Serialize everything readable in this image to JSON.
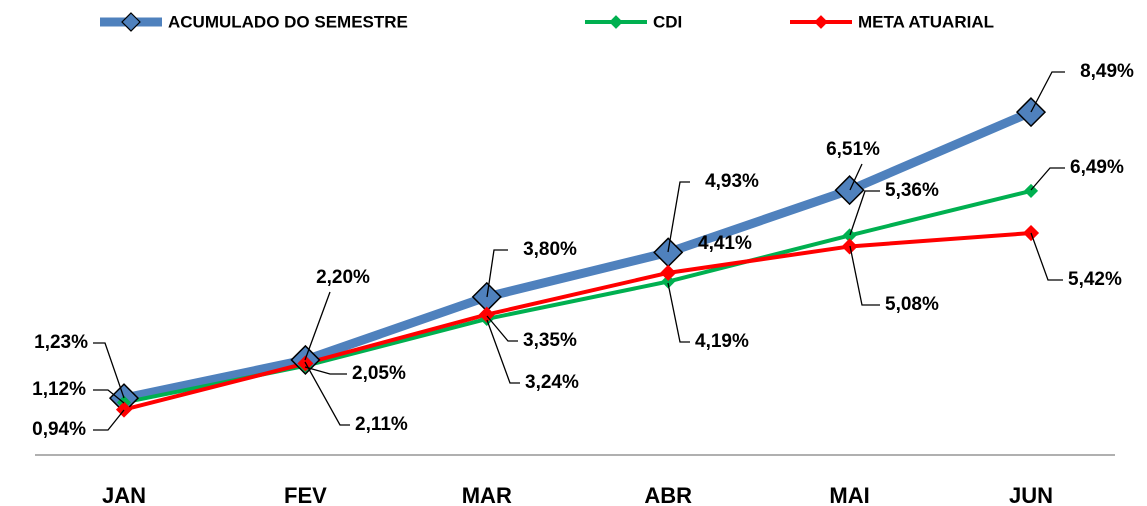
{
  "chart_data": {
    "type": "line",
    "categories": [
      "JAN",
      "FEV",
      "MAR",
      "ABR",
      "MAI",
      "JUN"
    ],
    "ylim": [
      0,
      9
    ],
    "series": [
      {
        "name": "ACUMULADO DO SEMESTRE",
        "color": "#4f81bd",
        "values": [
          1.23,
          2.2,
          3.8,
          4.93,
          6.51,
          8.49
        ],
        "value_labels": [
          "1,23%",
          "2,20%",
          "3,80%",
          "4,93%",
          "6,51%",
          "8,49%"
        ]
      },
      {
        "name": "CDI",
        "color": "#00b050",
        "values": [
          1.12,
          2.05,
          3.24,
          4.19,
          5.36,
          6.49
        ],
        "value_labels": [
          "1,12%",
          "2,05%",
          "3,24%",
          "4,19%",
          "5,36%",
          "6,49%"
        ]
      },
      {
        "name": "META ATUARIAL",
        "color": "#ff0000",
        "values": [
          0.94,
          2.11,
          3.35,
          4.41,
          5.08,
          5.42
        ],
        "value_labels": [
          "0,94%",
          "2,11%",
          "3,35%",
          "4,41%",
          "5,08%",
          "5,42%"
        ]
      }
    ]
  }
}
